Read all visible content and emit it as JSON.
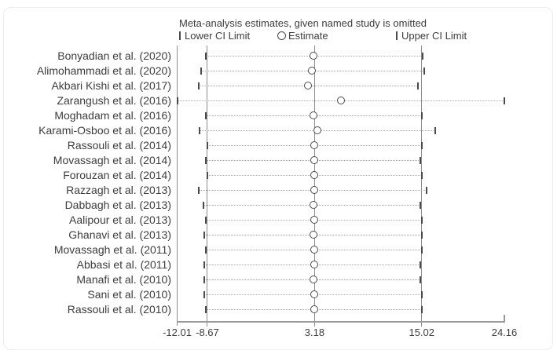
{
  "figure": {
    "title": "Meta-analysis estimates, given named study is omitted",
    "legend": {
      "lower_label": "Lower CI Limit",
      "estimate_label": "Estimate",
      "upper_label": "Upper CI Limit"
    }
  },
  "colors": {
    "text": "#3d3d3d",
    "reference_line": "#8c8c8c",
    "axis_line": "#9a9a9a",
    "dotted_ci_line": "#a8a8a8",
    "marker": "#4a4a4a",
    "marker_fill": "#ffffff"
  },
  "chart_data": {
    "type": "scatter",
    "subtype": "leave-one-out-sensitivity-forest",
    "title": "Meta-analysis estimates, given named study is omitted",
    "legend_entries": [
      "Lower CI Limit",
      "Estimate",
      "Upper CI Limit"
    ],
    "xlim": [
      -12.01,
      24.16
    ],
    "x_ticks": {
      "values": [
        -12.01,
        -8.67,
        3.18,
        15.02,
        24.16
      ],
      "labels": [
        "-12.01",
        "-8.67",
        "3.18",
        "15.02",
        "24.16"
      ]
    },
    "overall": {
      "lower_ci": -8.67,
      "estimate": 3.18,
      "upper_ci": 15.02
    },
    "reference_line_values": [
      -12.01,
      -8.67,
      3.18,
      15.02
    ],
    "grid": "vertical reference lines at overall estimate and CI limits; horizontal dotted CI spans per study",
    "legend_position": "top",
    "studies": [
      {
        "label": "Bonyadian et al. (2020)",
        "lower": -8.8,
        "estimate": 3.1,
        "upper": 15.1
      },
      {
        "label": "Alimohammadi et al. (2020)",
        "lower": -9.4,
        "estimate": 2.9,
        "upper": 15.3
      },
      {
        "label": "Akbari Kishi et al. (2017)",
        "lower": -9.6,
        "estimate": 2.5,
        "upper": 14.6
      },
      {
        "label": "Zarangush et al. (2016)",
        "lower": -12.01,
        "estimate": 6.1,
        "upper": 24.16
      },
      {
        "label": "Moghadam et al. (2016)",
        "lower": -8.8,
        "estimate": 3.1,
        "upper": 15.0
      },
      {
        "label": "Karami-Osboo et al. (2016)",
        "lower": -9.5,
        "estimate": 3.5,
        "upper": 16.5
      },
      {
        "label": "Rassouli et al. (2014)",
        "lower": -8.7,
        "estimate": 3.2,
        "upper": 15.0
      },
      {
        "label": "Movassagh et al. (2014)",
        "lower": -8.8,
        "estimate": 3.2,
        "upper": 14.9
      },
      {
        "label": "Forouzan et al. (2014)",
        "lower": -8.7,
        "estimate": 3.2,
        "upper": 15.0
      },
      {
        "label": "Razzagh et al. (2013)",
        "lower": -9.6,
        "estimate": 3.2,
        "upper": 15.6
      },
      {
        "label": "Dabbagh et al. (2013)",
        "lower": -9.1,
        "estimate": 3.1,
        "upper": 14.9
      },
      {
        "label": "Aalipour et al. (2013)",
        "lower": -8.8,
        "estimate": 3.2,
        "upper": 15.0
      },
      {
        "label": "Ghanavi et al. (2013)",
        "lower": -9.0,
        "estimate": 3.1,
        "upper": 15.0
      },
      {
        "label": "Movassagh et al. (2011)",
        "lower": -8.8,
        "estimate": 3.2,
        "upper": 15.0
      },
      {
        "label": "Abbasi et al. (2011)",
        "lower": -9.0,
        "estimate": 3.2,
        "upper": 14.9
      },
      {
        "label": "Manafi et al. (2010)",
        "lower": -9.0,
        "estimate": 3.1,
        "upper": 14.9
      },
      {
        "label": "Sani et al. (2010)",
        "lower": -9.0,
        "estimate": 3.2,
        "upper": 15.0
      },
      {
        "label": "Rassouli et al. (2010)",
        "lower": -8.8,
        "estimate": 3.2,
        "upper": 15.0
      }
    ]
  }
}
